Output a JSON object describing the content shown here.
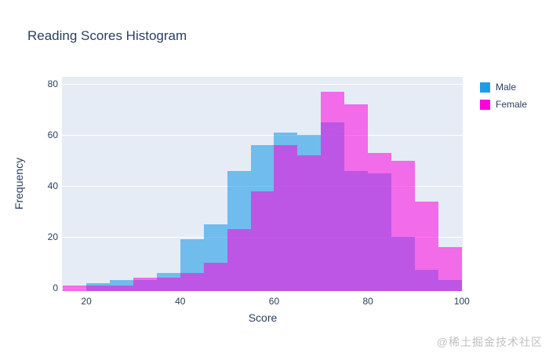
{
  "title": "Reading Scores Histogram",
  "watermark": "@稀土掘金技术社区",
  "chart_data": {
    "type": "bar",
    "subtype": "overlaid-histogram",
    "title": "Reading Scores Histogram",
    "xlabel": "Score",
    "ylabel": "Frequency",
    "bin_width": 5,
    "bin_starts": [
      15,
      20,
      25,
      30,
      35,
      40,
      45,
      50,
      55,
      60,
      65,
      70,
      75,
      80,
      85,
      90,
      95
    ],
    "series": [
      {
        "name": "Male",
        "color": "#1f9ce8",
        "fill_alpha": 0.6,
        "values": [
          0,
          2,
          3,
          3,
          6,
          19,
          25,
          46,
          56,
          61,
          60,
          65,
          46,
          45,
          20,
          7,
          3
        ]
      },
      {
        "name": "Female",
        "color": "#fd01dd",
        "fill_alpha": 0.55,
        "values": [
          1,
          1,
          1,
          4,
          4,
          6,
          10,
          23,
          38,
          56,
          52,
          77,
          72,
          53,
          50,
          34,
          16
        ]
      }
    ],
    "x_ticks": [
      20,
      40,
      60,
      80,
      100
    ],
    "y_ticks": [
      0,
      20,
      40,
      60,
      80
    ],
    "x_range": [
      14.8,
      100.2
    ],
    "y_range": [
      -1.2,
      82.8
    ],
    "grid": true,
    "plot_bg": "#e5ecf6",
    "grid_color": "#ffffff",
    "text_color": "#2a3f5f",
    "legend_position": "top-right"
  },
  "legend": {
    "items": [
      {
        "label": "Male",
        "color": "#1f9ce8"
      },
      {
        "label": "Female",
        "color": "#fd01dd"
      }
    ]
  }
}
